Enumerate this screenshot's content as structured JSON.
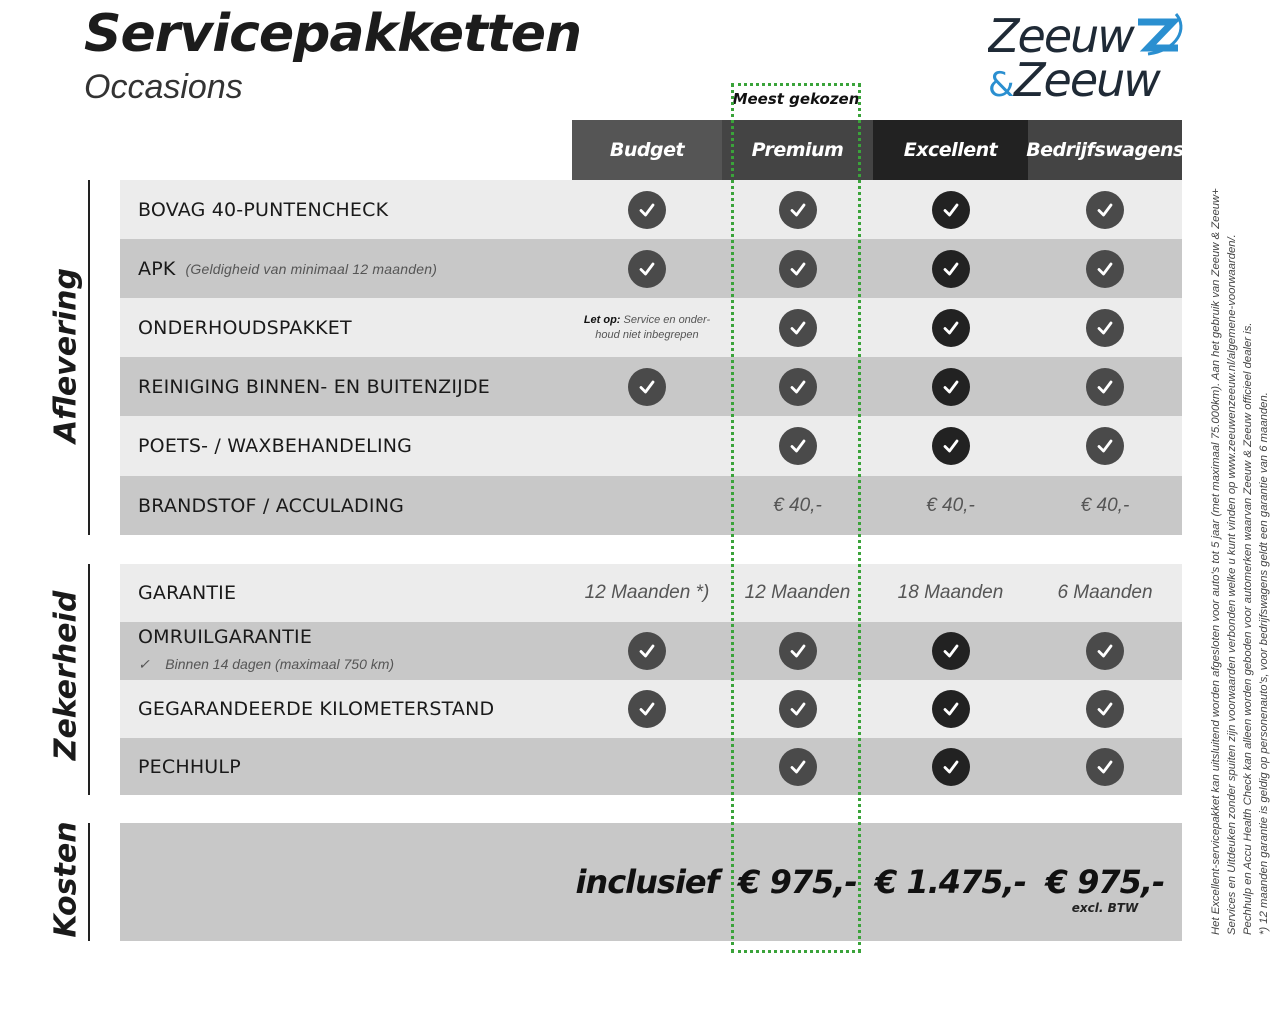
{
  "title": "Servicepakketten",
  "subtitle": "Occasions",
  "logo": {
    "line1": "Zeeuw",
    "line2": "& Zeeuw",
    "brand_color": "#2a8fd0",
    "text_color": "#1f2a36"
  },
  "most_chosen": "Meest gekozen",
  "columns": [
    "Budget",
    "Premium",
    "Excellent",
    "Bedrijfswagens"
  ],
  "colors": {
    "budget": "#555555",
    "premium": "#444444",
    "excellent": "#222222",
    "bedrijfswagens": "#444444",
    "highlight": "#3aa33a"
  },
  "sections": [
    {
      "label": "Aflevering",
      "rows": [
        {
          "label": "BOVAG 40-PUNTENCHECK",
          "cells": [
            "check",
            "check",
            "check",
            "check"
          ]
        },
        {
          "label": "APK",
          "sub": "(Geldigheid van minimaal 12 maanden)",
          "cells": [
            "check",
            "check",
            "check",
            "check"
          ]
        },
        {
          "label": "ONDERHOUDSPAKKET",
          "cells": [
            "note",
            "check",
            "check",
            "check"
          ]
        },
        {
          "label": "REINIGING BINNEN- EN BUITENZIJDE",
          "cells": [
            "check",
            "check",
            "check",
            "check"
          ]
        },
        {
          "label": "POETS- / WAXBEHANDELING",
          "cells": [
            "",
            "check",
            "check",
            "check"
          ]
        },
        {
          "label": "BRANDSTOF / ACCULADING",
          "cells": [
            "",
            "€ 40,-",
            "€ 40,-",
            "€ 40,-"
          ]
        }
      ]
    },
    {
      "label": "Zekerheid",
      "rows": [
        {
          "label": "GARANTIE",
          "cells": [
            "12 Maanden *)",
            "12 Maanden",
            "18 Maanden",
            "6 Maanden"
          ]
        },
        {
          "label": "OMRUILGARANTIE",
          "sub2": "Binnen 14 dagen (maximaal 750 km)",
          "cells": [
            "check",
            "check",
            "check",
            "check"
          ]
        },
        {
          "label": "GEGARANDEERDE KILOMETERSTAND",
          "cells": [
            "check",
            "check",
            "check",
            "check"
          ]
        },
        {
          "label": "PECHHULP",
          "cells": [
            "",
            "check",
            "check",
            "check"
          ]
        }
      ]
    }
  ],
  "note": {
    "bold": "Let op:",
    "text": " Service en onder-",
    "text2": "houd niet inbegrepen"
  },
  "costs": {
    "label": "Kosten",
    "values": [
      "inclusief",
      "€ 975,-",
      "€ 1.475,-",
      "€ 975,-"
    ],
    "excl": "excl. BTW"
  },
  "footnotes": [
    "Het Excellent-servicepakket kan uitsluitend worden afgesloten voor auto's tot 5 jaar (met maximaal 75.000km). Aan het gebruik van Zeeuw & Zeeuw+",
    "Services en Uitdeuken zonder spuiten zijn voorwaarden verbonden welke u kunt vinden op www.zeeuwenzeeuw.nl/algemene-voorwaarden/.",
    "Pechhulp en Accu Health Check kan alleen worden geboden voor automerken waarvan Zeeuw & Zeeuw officieel dealer is.",
    "*) 12 maanden garantie is geldig op personenauto's, voor bedrijfswagens geldt een garantie van 6 maanden."
  ]
}
